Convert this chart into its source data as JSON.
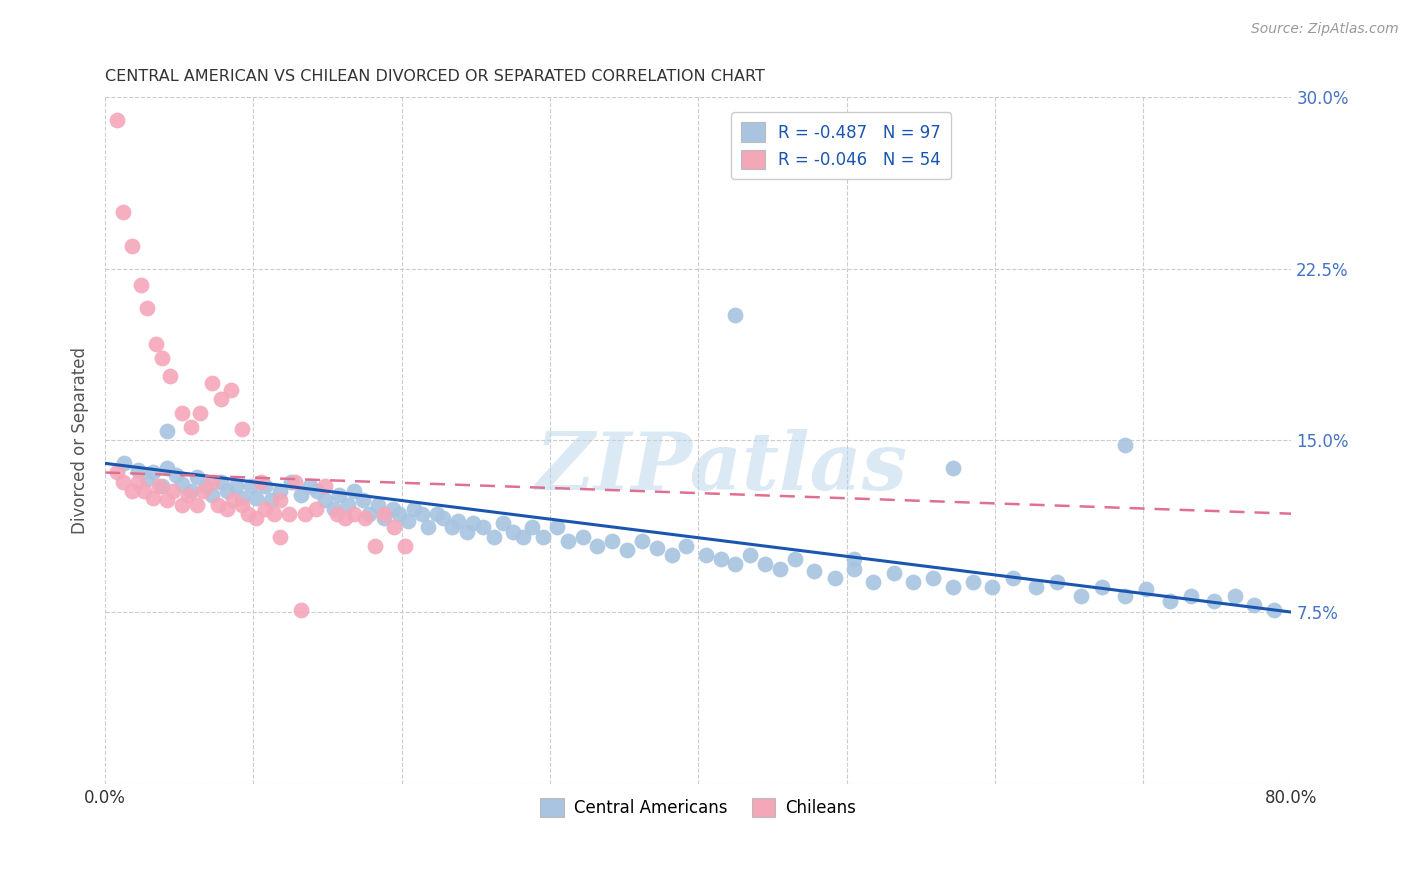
{
  "title": "CENTRAL AMERICAN VS CHILEAN DIVORCED OR SEPARATED CORRELATION CHART",
  "source": "Source: ZipAtlas.com",
  "ylabel": "Divorced or Separated",
  "legend_bottom": [
    "Central Americans",
    "Chileans"
  ],
  "r_blue": -0.487,
  "n_blue": 97,
  "r_pink": -0.046,
  "n_pink": 54,
  "xlim": [
    0.0,
    0.8
  ],
  "ylim": [
    0.0,
    0.3
  ],
  "yticks": [
    0.0,
    0.075,
    0.15,
    0.225,
    0.3
  ],
  "ytick_labels": [
    "",
    "7.5%",
    "15.0%",
    "22.5%",
    "30.0%"
  ],
  "xtick_labels": [
    "0.0%",
    "",
    "",
    "",
    "",
    "",
    "",
    "",
    "80.0%"
  ],
  "color_blue": "#a8c4e0",
  "color_pink": "#f4a7b9",
  "line_blue": "#1a56b0",
  "line_pink": "#e07090",
  "background": "#ffffff",
  "grid_color": "#cccccc",
  "blue_x": [
    0.013,
    0.022,
    0.028,
    0.032,
    0.038,
    0.042,
    0.048,
    0.052,
    0.058,
    0.062,
    0.068,
    0.072,
    0.078,
    0.082,
    0.088,
    0.092,
    0.098,
    0.102,
    0.108,
    0.112,
    0.118,
    0.125,
    0.132,
    0.138,
    0.143,
    0.148,
    0.154,
    0.158,
    0.164,
    0.168,
    0.174,
    0.178,
    0.184,
    0.188,
    0.194,
    0.198,
    0.204,
    0.208,
    0.214,
    0.218,
    0.224,
    0.228,
    0.234,
    0.238,
    0.244,
    0.248,
    0.255,
    0.262,
    0.268,
    0.275,
    0.282,
    0.288,
    0.295,
    0.305,
    0.312,
    0.322,
    0.332,
    0.342,
    0.352,
    0.362,
    0.372,
    0.382,
    0.392,
    0.405,
    0.415,
    0.425,
    0.435,
    0.445,
    0.455,
    0.465,
    0.478,
    0.492,
    0.505,
    0.518,
    0.532,
    0.545,
    0.558,
    0.572,
    0.585,
    0.598,
    0.612,
    0.628,
    0.642,
    0.658,
    0.672,
    0.688,
    0.702,
    0.718,
    0.732,
    0.748,
    0.762,
    0.775,
    0.788,
    0.042,
    0.425,
    0.572,
    0.505,
    0.688
  ],
  "blue_y": [
    0.14,
    0.137,
    0.133,
    0.136,
    0.13,
    0.138,
    0.135,
    0.131,
    0.128,
    0.134,
    0.13,
    0.126,
    0.132,
    0.128,
    0.13,
    0.125,
    0.13,
    0.125,
    0.13,
    0.124,
    0.128,
    0.132,
    0.126,
    0.13,
    0.128,
    0.124,
    0.12,
    0.126,
    0.122,
    0.128,
    0.124,
    0.118,
    0.122,
    0.116,
    0.12,
    0.118,
    0.115,
    0.12,
    0.118,
    0.112,
    0.118,
    0.116,
    0.112,
    0.115,
    0.11,
    0.114,
    0.112,
    0.108,
    0.114,
    0.11,
    0.108,
    0.112,
    0.108,
    0.112,
    0.106,
    0.108,
    0.104,
    0.106,
    0.102,
    0.106,
    0.103,
    0.1,
    0.104,
    0.1,
    0.098,
    0.096,
    0.1,
    0.096,
    0.094,
    0.098,
    0.093,
    0.09,
    0.094,
    0.088,
    0.092,
    0.088,
    0.09,
    0.086,
    0.088,
    0.086,
    0.09,
    0.086,
    0.088,
    0.082,
    0.086,
    0.082,
    0.085,
    0.08,
    0.082,
    0.08,
    0.082,
    0.078,
    0.076,
    0.154,
    0.205,
    0.138,
    0.098,
    0.148
  ],
  "pink_x": [
    0.008,
    0.012,
    0.018,
    0.022,
    0.026,
    0.032,
    0.036,
    0.042,
    0.046,
    0.052,
    0.056,
    0.062,
    0.066,
    0.072,
    0.076,
    0.082,
    0.086,
    0.092,
    0.096,
    0.102,
    0.108,
    0.114,
    0.118,
    0.124,
    0.128,
    0.135,
    0.142,
    0.148,
    0.156,
    0.162,
    0.168,
    0.175,
    0.182,
    0.188,
    0.195,
    0.202,
    0.008,
    0.012,
    0.018,
    0.024,
    0.028,
    0.034,
    0.038,
    0.044,
    0.052,
    0.058,
    0.064,
    0.072,
    0.078,
    0.085,
    0.092,
    0.105,
    0.118,
    0.132
  ],
  "pink_y": [
    0.136,
    0.132,
    0.128,
    0.132,
    0.128,
    0.125,
    0.13,
    0.124,
    0.128,
    0.122,
    0.126,
    0.122,
    0.128,
    0.132,
    0.122,
    0.12,
    0.124,
    0.122,
    0.118,
    0.116,
    0.12,
    0.118,
    0.124,
    0.118,
    0.132,
    0.118,
    0.12,
    0.13,
    0.118,
    0.116,
    0.118,
    0.116,
    0.104,
    0.118,
    0.112,
    0.104,
    0.29,
    0.25,
    0.235,
    0.218,
    0.208,
    0.192,
    0.186,
    0.178,
    0.162,
    0.156,
    0.162,
    0.175,
    0.168,
    0.172,
    0.155,
    0.132,
    0.108,
    0.076
  ],
  "trend_blue_x0": 0.0,
  "trend_blue_y0": 0.14,
  "trend_blue_x1": 0.8,
  "trend_blue_y1": 0.075,
  "trend_pink_x0": 0.0,
  "trend_pink_y0": 0.136,
  "trend_pink_x1": 0.8,
  "trend_pink_y1": 0.118
}
